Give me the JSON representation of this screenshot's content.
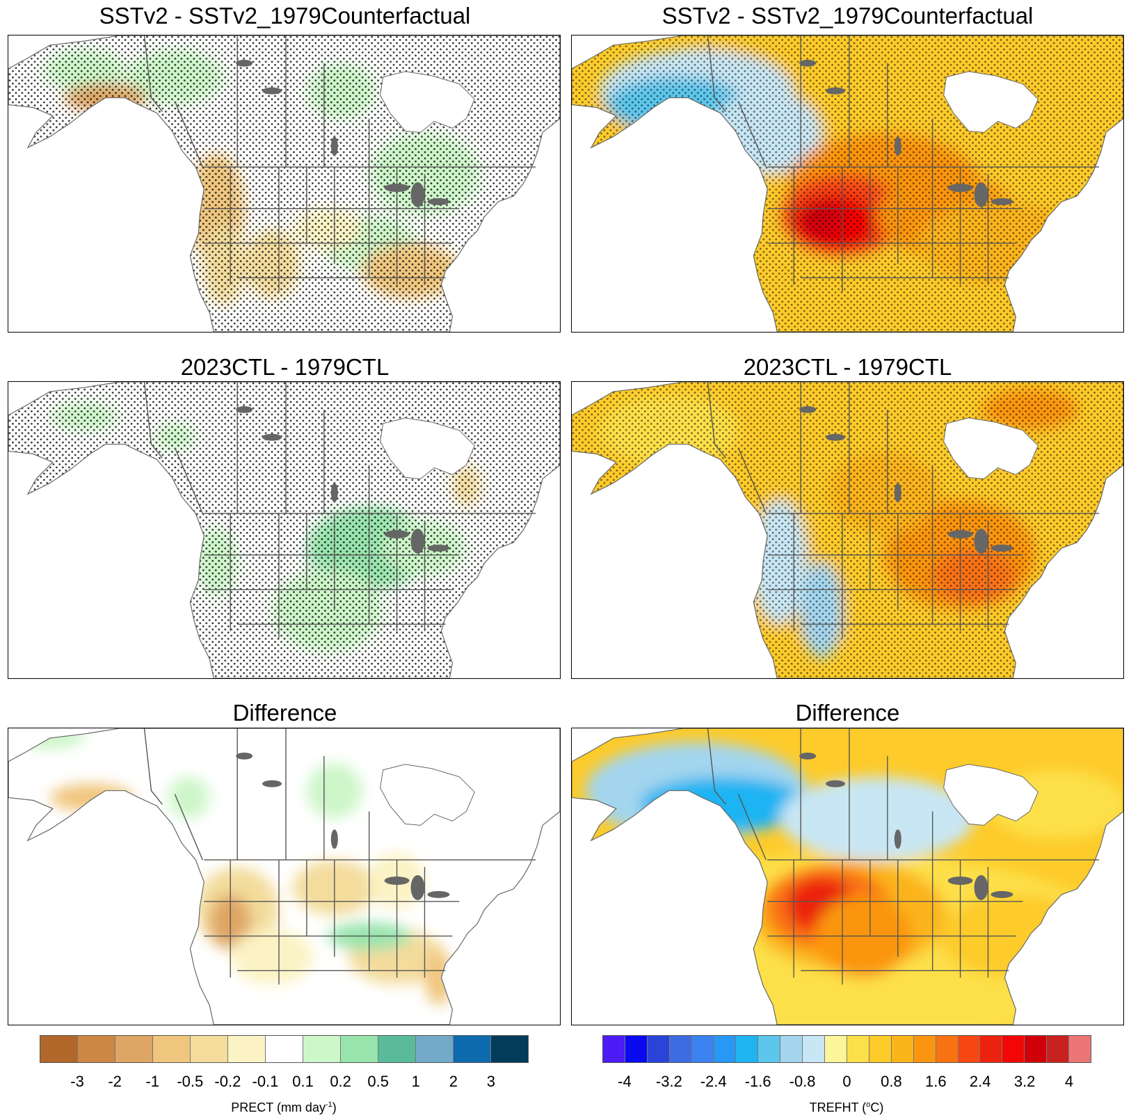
{
  "panels": [
    {
      "title": "SSTv2 - SSTv2_1979Counterfactual",
      "variable": "precip",
      "scenario": "sst"
    },
    {
      "title": "SSTv2 - SSTv2_1979Counterfactual",
      "variable": "temp",
      "scenario": "sst"
    },
    {
      "title": "2023CTL - 1979CTL",
      "variable": "precip",
      "scenario": "ctl"
    },
    {
      "title": "2023CTL - 1979CTL",
      "variable": "temp",
      "scenario": "ctl"
    },
    {
      "title": "Difference",
      "variable": "precip",
      "scenario": "diff"
    },
    {
      "title": "Difference",
      "variable": "temp",
      "scenario": "diff"
    }
  ],
  "colorbars": {
    "precip": {
      "label": "PRECT (mm day",
      "label_sup": "-1",
      "label_tail": ")",
      "ticks": [
        "-3",
        "-2",
        "-1",
        "-0.5",
        "-0.2",
        "-0.1",
        "0.1",
        "0.2",
        "0.5",
        "1",
        "2",
        "3"
      ],
      "colors": [
        "#b1682a",
        "#cc8744",
        "#dea564",
        "#f0c67e",
        "#f3dc9c",
        "#fbf3c4",
        "#ffffff",
        "#cdf6c9",
        "#98e4ad",
        "#5abb9a",
        "#73aac8",
        "#0d6aac",
        "#023c5a"
      ]
    },
    "temp": {
      "label": "TREFHT (",
      "label_sup": "o",
      "label_tail": "C)",
      "ticks": [
        "-4",
        "-3.2",
        "-2.4",
        "-1.6",
        "-0.8",
        "0",
        "0.8",
        "1.6",
        "2.4",
        "3.2",
        "4"
      ],
      "colors": [
        "#4c1bf6",
        "#0a0af0",
        "#2a44d8",
        "#3d6ce0",
        "#3a82f0",
        "#2799f5",
        "#1eb4f2",
        "#5cc6ec",
        "#a3d5ee",
        "#c8e6f4",
        "#fcf59a",
        "#fde048",
        "#fdcb2a",
        "#fbb41a",
        "#fb9510",
        "#f97212",
        "#f64712",
        "#ec220e",
        "#f30606",
        "#d00009",
        "#c9211f",
        "#ec7576"
      ]
    }
  }
}
